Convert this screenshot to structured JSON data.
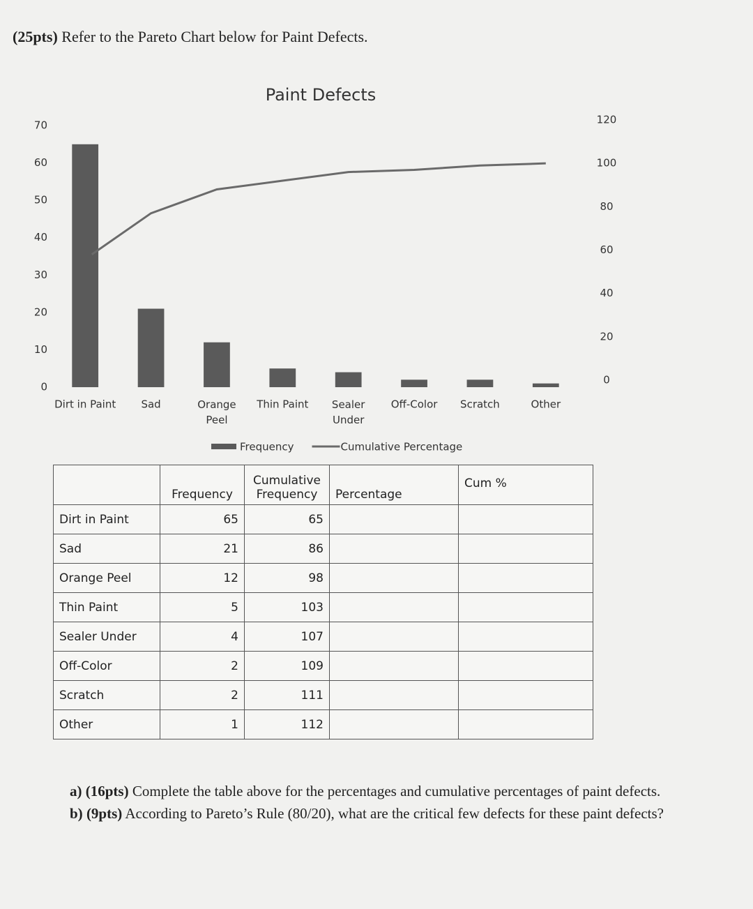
{
  "header": {
    "points": "(25pts)",
    "text": "Refer to the Pareto Chart below for Paint Defects."
  },
  "chart_data": {
    "type": "pareto",
    "title": "Paint Defects",
    "categories": [
      "Dirt in Paint",
      "Sad",
      "Orange Peel",
      "Thin Paint",
      "Sealer Under",
      "Off-Color",
      "Scratch",
      "Other"
    ],
    "series": [
      {
        "name": "Frequency",
        "color": "#5a5a5a",
        "values": [
          65,
          21,
          12,
          5,
          4,
          2,
          2,
          1
        ]
      },
      {
        "name": "Cumulative Percentage",
        "color": "#6a6a6a",
        "axis": "y2",
        "values": [
          58,
          77,
          88,
          92,
          96,
          97,
          99,
          100
        ]
      }
    ],
    "ylim": [
      0,
      70
    ],
    "yticks": [
      0,
      10,
      20,
      30,
      40,
      50,
      60,
      70
    ],
    "y2lim": [
      0,
      120
    ],
    "y2ticks": [
      0,
      20,
      40,
      60,
      80,
      100,
      120
    ],
    "grid": false
  },
  "table": {
    "headers": [
      "Frequency",
      "Cumulative Frequency",
      "Percentage",
      "Cum %"
    ],
    "rows": [
      [
        "Dirt in Paint",
        65,
        65
      ],
      [
        "Sad",
        21,
        86
      ],
      [
        "Orange Peel",
        12,
        98
      ],
      [
        "Thin Paint",
        5,
        103
      ],
      [
        "Sealer Under",
        4,
        107
      ],
      [
        "Off-Color",
        2,
        109
      ],
      [
        "Scratch",
        2,
        111
      ],
      [
        "Other",
        1,
        112
      ]
    ]
  },
  "questions": [
    {
      "label": "a)",
      "points": "(16pts)",
      "text": "Complete the table above for the percentages and cumulative percentages of paint defects."
    },
    {
      "label": "b)",
      "points": "(9pts)",
      "text": "According to Pareto’s Rule (80/20), what are the critical few defects for these paint defects?"
    }
  ]
}
